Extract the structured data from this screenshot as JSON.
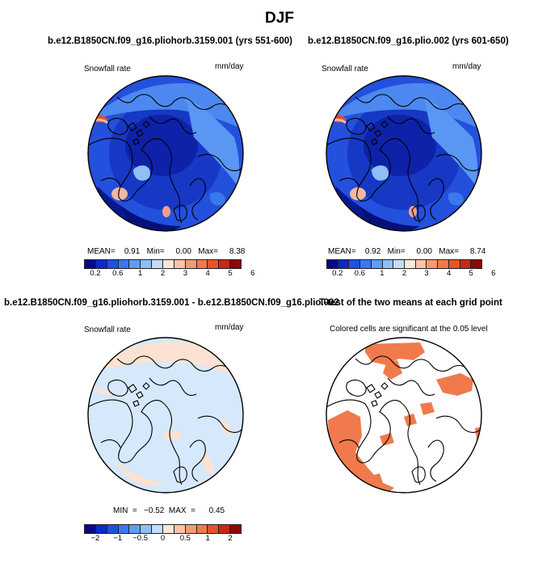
{
  "header": {
    "title": "DJF"
  },
  "panels": {
    "top_left": {
      "title": "b.e12.B1850CN.f09_g16.pliohorb.3159.001 (yrs 551-600)",
      "variable_label": "Snowfall rate",
      "units_label": "mm/day",
      "stats_text": "MEAN=    0.91   Min=     0.00   Max=     8.38"
    },
    "top_right": {
      "title": "b.e12.B1850CN.f09_g16.plio.002 (yrs 601-650)",
      "variable_label": "Snowfall rate",
      "units_label": "mm/day",
      "stats_text": "MEAN=    0.92   Min=     0.00   Max=     8.74"
    },
    "bottom_left": {
      "title": "b.e12.B1850CN.f09_g16.pliohorb.3159.001 - b.e12.B1850CN.f09_g16.plio.002",
      "variable_label": "Snowfall rate",
      "units_label": "mm/day",
      "stats_text": "MIN  =   −0.52  MAX  =      0.45"
    },
    "bottom_right": {
      "title": "T-test of the two means at each grid point",
      "note": "Colored cells are significant at the 0.05 level"
    }
  },
  "colorbars": {
    "snowfall": {
      "colors": [
        "#08088a",
        "#0d28c8",
        "#1f50e0",
        "#3a78ee",
        "#5f9cf4",
        "#8fbef8",
        "#c3dcfc",
        "#fbe7d8",
        "#f8c4a8",
        "#f59a72",
        "#f07a4c",
        "#e2542c",
        "#c42a16",
        "#8a0a06"
      ],
      "ticks": [
        "0.2",
        "0.6",
        "1",
        "2",
        "3",
        "4",
        "5",
        "6"
      ]
    },
    "difference": {
      "colors": [
        "#08088a",
        "#0d28c8",
        "#1f50e0",
        "#3a78ee",
        "#5f9cf4",
        "#8fbef8",
        "#c3dcfc",
        "#fbe7d8",
        "#f8c4a8",
        "#f59a72",
        "#f07a4c",
        "#e2542c",
        "#c42a16",
        "#8a0a06"
      ],
      "ticks": [
        "−2",
        "−1",
        "−0.5",
        "0",
        "0.5",
        "1",
        "2"
      ]
    }
  },
  "chart_data": [
    {
      "type": "heatmap",
      "title": "b.e12.B1850CN.f09_g16.pliohorb.3159.001 (yrs 551-600)",
      "variable": "Snowfall rate",
      "units": "mm/day",
      "projection": "north polar stereographic",
      "mean": 0.91,
      "min": 0.0,
      "max": 8.38,
      "levels": [
        0.2,
        0.4,
        0.6,
        0.8,
        1,
        1.5,
        2,
        2.5,
        3,
        3.5,
        4,
        4.5,
        5,
        5.5,
        6
      ],
      "colorbar_ticks": [
        0.2,
        0.6,
        1,
        2,
        3,
        4,
        5,
        6
      ]
    },
    {
      "type": "heatmap",
      "title": "b.e12.B1850CN.f09_g16.plio.002 (yrs 601-650)",
      "variable": "Snowfall rate",
      "units": "mm/day",
      "projection": "north polar stereographic",
      "mean": 0.92,
      "min": 0.0,
      "max": 8.74,
      "levels": [
        0.2,
        0.4,
        0.6,
        0.8,
        1,
        1.5,
        2,
        2.5,
        3,
        3.5,
        4,
        4.5,
        5,
        5.5,
        6
      ],
      "colorbar_ticks": [
        0.2,
        0.6,
        1,
        2,
        3,
        4,
        5,
        6
      ]
    },
    {
      "type": "heatmap",
      "title": "b.e12.B1850CN.f09_g16.pliohorb.3159.001 - b.e12.B1850CN.f09_g16.plio.002",
      "variable": "Snowfall rate",
      "units": "mm/day",
      "projection": "north polar stereographic",
      "min": -0.52,
      "max": 0.45,
      "colorbar_ticks": [
        -2,
        -1,
        -0.5,
        0,
        0.5,
        1,
        2
      ]
    },
    {
      "type": "heatmap",
      "title": "T-test of the two means at each grid point",
      "annotation": "Colored cells are significant at the 0.05 level",
      "significance_level": 0.05
    }
  ]
}
